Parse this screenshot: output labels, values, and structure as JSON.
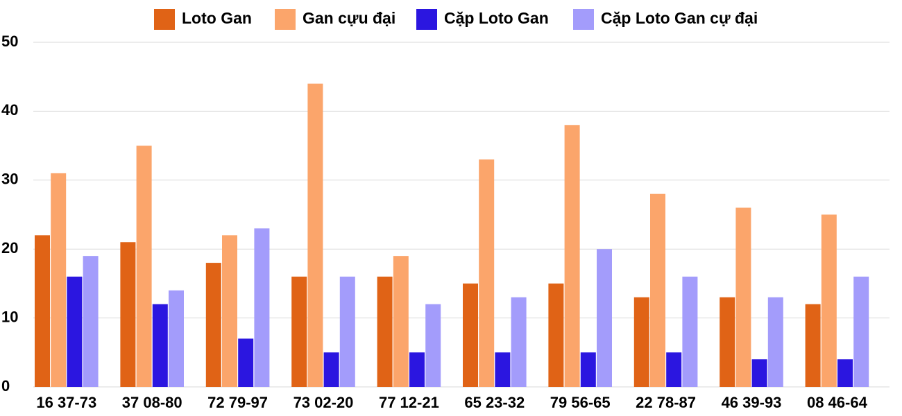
{
  "chart_data": {
    "type": "bar",
    "categories": [
      "16 37-73",
      "37 08-80",
      "72 79-97",
      "73 02-20",
      "77 12-21",
      "65 23-32",
      "79 56-65",
      "22 78-87",
      "46 39-93",
      "08 46-64"
    ],
    "series": [
      {
        "name": "Loto Gan",
        "color": "#e06316",
        "values": [
          22,
          21,
          18,
          16,
          16,
          15,
          15,
          13,
          13,
          12
        ]
      },
      {
        "name": "Gan cựu đại",
        "color": "#fba56b",
        "values": [
          31,
          35,
          22,
          44,
          19,
          33,
          38,
          28,
          26,
          25
        ]
      },
      {
        "name": "Cặp Loto Gan",
        "color": "#2b16e0",
        "values": [
          16,
          12,
          7,
          5,
          5,
          5,
          5,
          5,
          4,
          4
        ]
      },
      {
        "name": "Cặp Loto Gan cự đại",
        "color": "#a39cfb",
        "values": [
          19,
          14,
          23,
          16,
          12,
          13,
          20,
          16,
          13,
          16
        ]
      }
    ],
    "ylim": [
      0,
      50
    ],
    "yticks": [
      0,
      10,
      20,
      30,
      40,
      50
    ],
    "grid": true,
    "legend": "top"
  }
}
